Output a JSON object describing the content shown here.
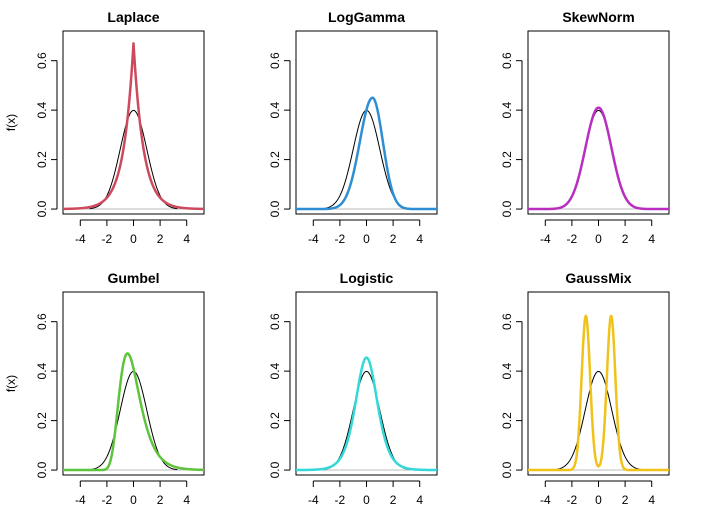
{
  "chart_data": [
    {
      "type": "line",
      "title": "Laplace",
      "ylabel": "f(x)",
      "xlim": [
        -5.3,
        5.3
      ],
      "ylim": [
        -0.02,
        0.72
      ],
      "xticks": [
        "-4",
        "-2",
        "0",
        "2",
        "4"
      ],
      "yticks": [
        "0.0",
        "0.2",
        "0.4",
        "0.6"
      ],
      "reference_color": "#000000",
      "color": "#cd4a5e",
      "family": "laplace",
      "peak": 0.67,
      "mean": 0.0,
      "sd": 1.0
    },
    {
      "type": "line",
      "title": "LogGamma",
      "ylabel": "",
      "xlim": [
        -5.3,
        5.3
      ],
      "ylim": [
        -0.02,
        0.72
      ],
      "xticks": [
        "-4",
        "-2",
        "0",
        "2",
        "4"
      ],
      "yticks": [
        "0.0",
        "0.2",
        "0.4",
        "0.6"
      ],
      "reference_color": "#000000",
      "color": "#2f8ed3",
      "family": "skewnormal",
      "peak": 0.45,
      "mode": 0.45,
      "sd_left": 0.95,
      "sd_right": 0.78
    },
    {
      "type": "line",
      "title": "SkewNorm",
      "ylabel": "",
      "xlim": [
        -5.3,
        5.3
      ],
      "ylim": [
        -0.02,
        0.72
      ],
      "xticks": [
        "-4",
        "-2",
        "0",
        "2",
        "4"
      ],
      "yticks": [
        "0.0",
        "0.2",
        "0.4",
        "0.6"
      ],
      "reference_color": "#000000",
      "color": "#b82fbf",
      "family": "skewnormal",
      "peak": 0.41,
      "mode": 0.0,
      "sd_left": 0.98,
      "sd_right": 0.97
    },
    {
      "type": "line",
      "title": "Gumbel",
      "ylabel": "f(x)",
      "xlim": [
        -5.3,
        5.3
      ],
      "ylim": [
        -0.02,
        0.72
      ],
      "xticks": [
        "-4",
        "-2",
        "0",
        "2",
        "4"
      ],
      "yticks": [
        "0.0",
        "0.2",
        "0.4",
        "0.6"
      ],
      "reference_color": "#000000",
      "color": "#5ec43b",
      "family": "gumbel",
      "location": -0.45,
      "scale": 0.78
    },
    {
      "type": "line",
      "title": "Logistic",
      "ylabel": "",
      "xlim": [
        -5.3,
        5.3
      ],
      "ylim": [
        -0.02,
        0.72
      ],
      "xticks": [
        "-4",
        "-2",
        "0",
        "2",
        "4"
      ],
      "yticks": [
        "0.0",
        "0.2",
        "0.4",
        "0.6"
      ],
      "reference_color": "#000000",
      "color": "#34d8d8",
      "family": "logistic",
      "location": 0.0,
      "scale": 0.55
    },
    {
      "type": "line",
      "title": "GaussMix",
      "ylabel": "",
      "xlim": [
        -5.3,
        5.3
      ],
      "ylim": [
        -0.02,
        0.72
      ],
      "xticks": [
        "-4",
        "-2",
        "0",
        "2",
        "4"
      ],
      "yticks": [
        "0.0",
        "0.2",
        "0.4",
        "0.6"
      ],
      "reference_color": "#000000",
      "color": "#f0c21a",
      "family": "gaussmix",
      "means": [
        -0.95,
        0.95
      ],
      "sd": 0.32,
      "weights": [
        0.5,
        0.5
      ]
    }
  ]
}
